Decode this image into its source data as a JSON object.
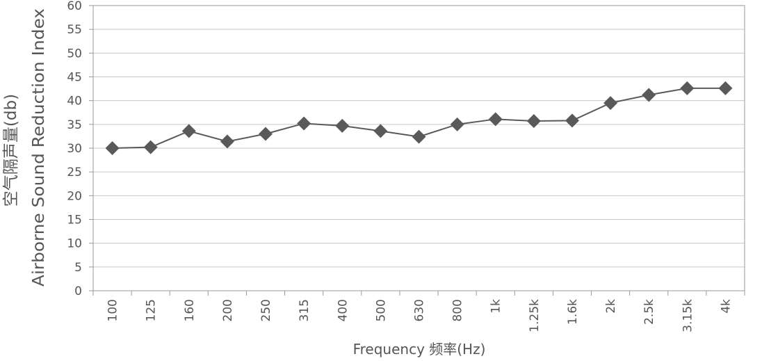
{
  "chart_data": {
    "type": "line",
    "title": "",
    "ylabel_cn": "空气隔声量(db)",
    "ylabel_en": "Airborne Sound Reduction Index",
    "xlabel": "Frequency 频率(Hz)",
    "ylim": [
      0,
      60
    ],
    "ytick_step": 5,
    "grid": true,
    "categories": [
      "100",
      "125",
      "160",
      "200",
      "250",
      "315",
      "400",
      "500",
      "630",
      "800",
      "1k",
      "1.25k",
      "1.6k",
      "2k",
      "2.5k",
      "3.15k",
      "4k"
    ],
    "series": [
      {
        "values": [
          30,
          30.2,
          33.6,
          31.4,
          33,
          35.2,
          34.7,
          33.6,
          32.4,
          35,
          36.1,
          35.7,
          35.8,
          39.5,
          41.2,
          42.6,
          42.6
        ],
        "color": "#595959",
        "marker": "diamond"
      }
    ],
    "colors": {
      "line": "#595959",
      "grid": "#c8c8c8",
      "frame": "#9a9a9a",
      "text": "#555555"
    }
  }
}
